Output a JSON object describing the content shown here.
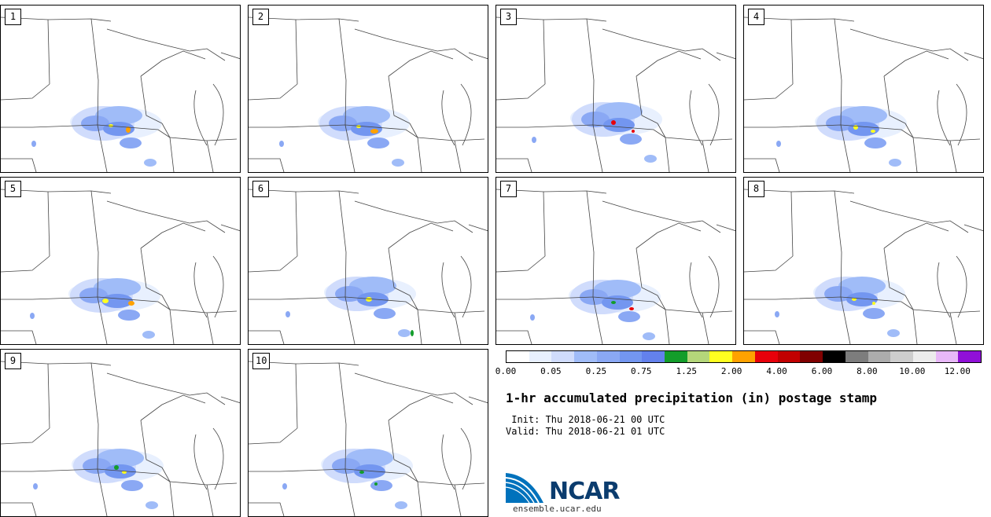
{
  "panels": [
    {
      "label": "1"
    },
    {
      "label": "2"
    },
    {
      "label": "3"
    },
    {
      "label": "4"
    },
    {
      "label": "5"
    },
    {
      "label": "6"
    },
    {
      "label": "7"
    },
    {
      "label": "8"
    },
    {
      "label": "9"
    },
    {
      "label": "10"
    }
  ],
  "colorbar": {
    "colors": [
      "#ffffff",
      "#e8f0fe",
      "#d0dcfc",
      "#a0bcf8",
      "#8aa8f4",
      "#7396f0",
      "#6381ec",
      "#139d2a",
      "#b4d67a",
      "#ffff20",
      "#ffa200",
      "#e8000a",
      "#c20000",
      "#800000",
      "#000000",
      "#7d7d7d",
      "#acacac",
      "#cdcdcd",
      "#ececec",
      "#e8b8f8",
      "#9010d8"
    ],
    "tick_labels": [
      "0.00",
      "0.05",
      "0.25",
      "0.75",
      "1.25",
      "2.00",
      "4.00",
      "6.00",
      "8.00",
      "10.00",
      "12.00"
    ]
  },
  "title": "1-hr accumulated precipitation (in) postage stamp",
  "init_line": " Init: Thu 2018-06-21 00 UTC",
  "valid_line": "Valid: Thu 2018-06-21 01 UTC",
  "logo_text": "NCAR",
  "website": "ensemble.ucar.edu"
}
